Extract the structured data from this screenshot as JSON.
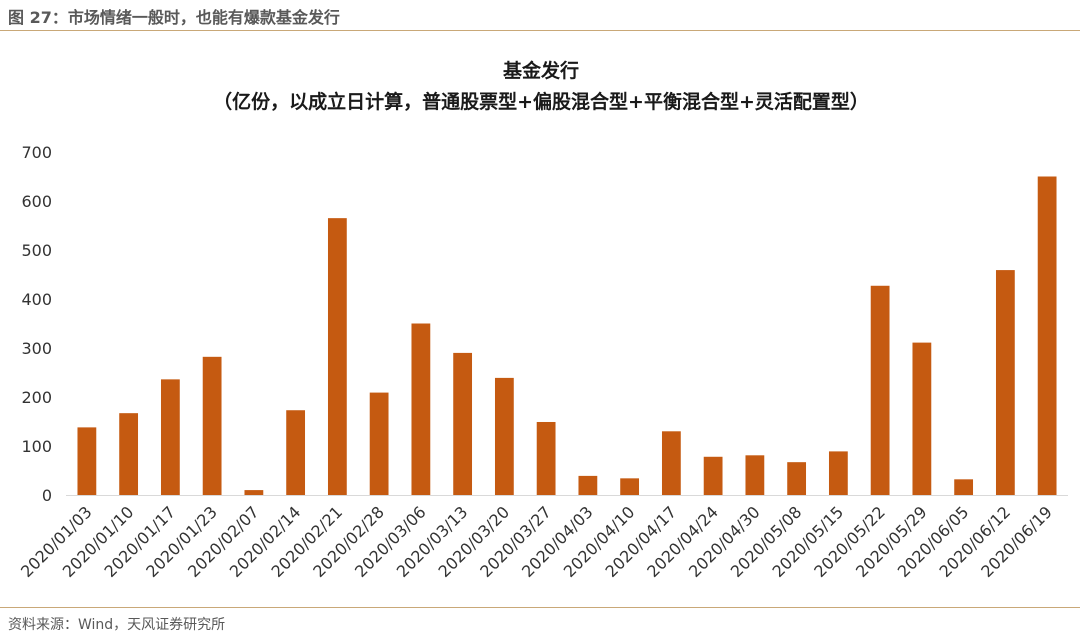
{
  "figure_caption": "图 27：市场情绪一般时，也能有爆款基金发行",
  "source": "资料来源：Wind，天风证券研究所",
  "colors": {
    "bar": "#c55a11",
    "rule": "#c9a878",
    "axis": "#d9d9d9"
  },
  "chart_data": {
    "type": "bar",
    "title": "基金发行",
    "subtitle": "（亿份，以成立日计算，普通股票型+偏股混合型+平衡混合型+灵活配置型）",
    "xlabel": "",
    "ylabel": "",
    "ylim": [
      0,
      700
    ],
    "yticks": [
      0,
      100,
      200,
      300,
      400,
      500,
      600,
      700
    ],
    "grid": false,
    "categories": [
      "2020/01/03",
      "2020/01/10",
      "2020/01/17",
      "2020/01/23",
      "2020/02/07",
      "2020/02/14",
      "2020/02/21",
      "2020/02/28",
      "2020/03/06",
      "2020/03/13",
      "2020/03/20",
      "2020/03/27",
      "2020/04/03",
      "2020/04/10",
      "2020/04/17",
      "2020/04/24",
      "2020/04/30",
      "2020/05/08",
      "2020/05/15",
      "2020/05/22",
      "2020/05/29",
      "2020/06/05",
      "2020/06/12",
      "2020/06/19"
    ],
    "values": [
      138,
      167,
      236,
      282,
      10,
      173,
      565,
      209,
      350,
      290,
      239,
      149,
      39,
      34,
      130,
      78,
      81,
      67,
      89,
      427,
      311,
      32,
      459,
      650
    ]
  }
}
